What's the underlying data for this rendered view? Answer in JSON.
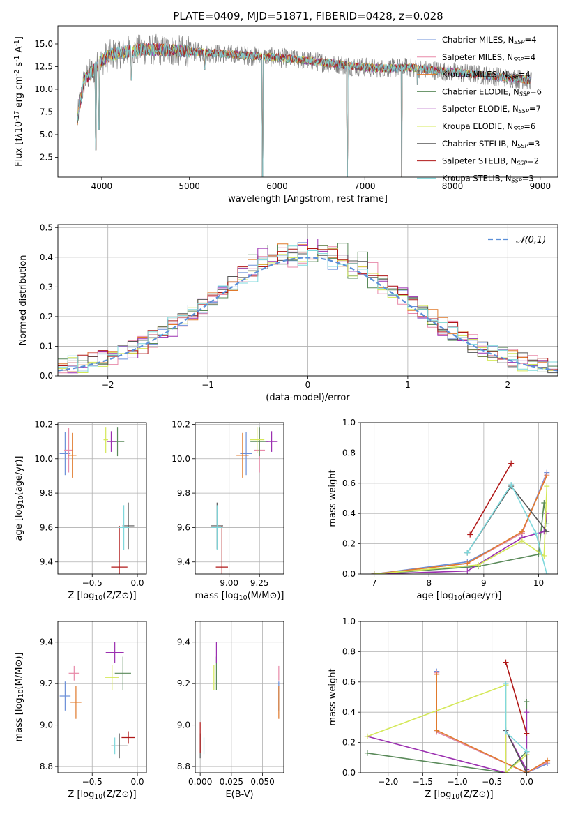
{
  "figure": {
    "title": "PLATE=0409, MJD=51871, FIBERID=0428, z=0.028"
  },
  "models": [
    {
      "name": "Chabrier MILES, N$_{SSP}$=4",
      "label": "Chabrier MILES, N",
      "n": "4",
      "color": "#6b8fd8"
    },
    {
      "name": "Salpeter MILES, N$_{SSP}$=4",
      "label": "Salpeter MILES, N",
      "n": "4",
      "color": "#e88aa9"
    },
    {
      "name": "Kroupa MILES, N$_{SSP}$=4",
      "label": "Kroupa MILES, N",
      "n": "4",
      "color": "#e07a2c"
    },
    {
      "name": "Chabrier ELODIE, N$_{SSP}$=6",
      "label": "Chabrier ELODIE, N",
      "n": "6",
      "color": "#5a8a5a"
    },
    {
      "name": "Salpeter ELODIE, N$_{SSP}$=7",
      "label": "Salpeter ELODIE, N",
      "n": "7",
      "color": "#9b2fb0"
    },
    {
      "name": "Kroupa ELODIE, N$_{SSP}$=6",
      "label": "Kroupa ELODIE, N",
      "n": "6",
      "color": "#d4e858"
    },
    {
      "name": "Chabrier STELIB, N$_{SSP}$=3",
      "label": "Chabrier STELIB, N",
      "n": "3",
      "color": "#555555"
    },
    {
      "name": "Salpeter STELIB, N$_{SSP}$=2",
      "label": "Salpeter STELIB, N",
      "n": "2",
      "color": "#b01818"
    },
    {
      "name": "Kroupa STELIB, N$_{SSP}$=3",
      "label": "Kroupa STELIB, N",
      "n": "3",
      "color": "#7fd8dc"
    }
  ],
  "chart_data": [
    {
      "id": "spectrum",
      "type": "line",
      "xlabel": "wavelength [Angstrom, rest frame]",
      "ylabel": "Flux [f$_\\lambda$10$^{-17}$ erg cm$^{-2}$ s$^{-1}$ A$^{-1}$]",
      "xlim": [
        3500,
        9200
      ],
      "ylim": [
        0.3,
        17.0
      ],
      "xticks": [
        4000,
        5000,
        6000,
        7000,
        8000,
        9000
      ],
      "yticks": [
        2.5,
        5.0,
        7.5,
        10.0,
        12.5,
        15.0
      ],
      "observed_color": "#808080",
      "continuum": {
        "x": [
          3720,
          3800,
          3900,
          4000,
          4100,
          4300,
          4500,
          4800,
          5100,
          5400,
          5700,
          6000,
          6300,
          6600,
          6900,
          7200,
          7500,
          7800,
          8100,
          8400,
          8700,
          8900
        ],
        "y": [
          6.5,
          11.0,
          12.0,
          13.2,
          13.8,
          14.2,
          14.4,
          14.3,
          14.1,
          13.9,
          13.7,
          13.5,
          13.2,
          12.9,
          12.5,
          12.3,
          12.4,
          12.1,
          11.8,
          11.5,
          11.2,
          11.0
        ]
      },
      "absorption_dips": [
        {
          "x": 3933,
          "y": 3.3
        },
        {
          "x": 3968,
          "y": 5.5
        },
        {
          "x": 4340,
          "y": 11.0
        },
        {
          "x": 5175,
          "y": 12.2
        },
        {
          "x": 5835,
          "y": 0.3
        },
        {
          "x": 6800,
          "y": 0.3
        },
        {
          "x": 7420,
          "y": 0.3
        },
        {
          "x": 7600,
          "y": 10.5
        }
      ]
    },
    {
      "id": "residuals",
      "type": "line",
      "xlabel": "(data-model)/error",
      "ylabel": "Normed distribution",
      "xlim": [
        -2.5,
        2.5
      ],
      "ylim": [
        0.0,
        0.51
      ],
      "xticks": [
        -2,
        -1,
        0,
        1,
        2
      ],
      "yticks": [
        0.0,
        0.1,
        0.2,
        0.3,
        0.4,
        0.5
      ],
      "bin_width": 0.1,
      "legend": "$\\mathcal{N}(0,1)$",
      "gaussian_color": "#5b8fd8"
    },
    {
      "id": "age_vs_Z",
      "type": "scatter",
      "xlabel": "Z [log$_{10}$(Z/Z$_\\odot$)]",
      "ylabel": "age  [log$_{10}$(age/yr)]",
      "xlim": [
        -0.88,
        0.1
      ],
      "ylim": [
        9.33,
        10.21
      ],
      "xticks": [
        -0.5,
        0.0
      ],
      "yticks": [
        9.4,
        9.6,
        9.8,
        10.0,
        10.2
      ],
      "points": [
        {
          "m": 0,
          "x": -0.8,
          "y": 10.03,
          "dx": 0.12,
          "dy": 0.25
        },
        {
          "m": 1,
          "x": -0.76,
          "y": 10.05,
          "dx": 0.1,
          "dy": 0.26
        },
        {
          "m": 2,
          "x": -0.72,
          "y": 10.02,
          "dx": 0.09,
          "dy": 0.26
        },
        {
          "m": 3,
          "x": -0.22,
          "y": 10.1,
          "dx": 0.15,
          "dy": 0.17
        },
        {
          "m": 4,
          "x": -0.29,
          "y": 10.1,
          "dx": 0.1,
          "dy": 0.12
        },
        {
          "m": 5,
          "x": -0.35,
          "y": 10.11,
          "dx": 0.05,
          "dy": 0.15
        },
        {
          "m": 6,
          "x": -0.1,
          "y": 9.61,
          "dx": 0.13,
          "dy": 0.27
        },
        {
          "m": 7,
          "x": -0.2,
          "y": 9.37,
          "dx": 0.18,
          "dy": 0.48
        },
        {
          "m": 8,
          "x": -0.15,
          "y": 9.6,
          "dx": 0.12,
          "dy": 0.26
        }
      ]
    },
    {
      "id": "age_vs_mass",
      "type": "scatter",
      "xlabel": "mass [log$_{10}$(M/M$_\\odot$)]",
      "ylabel": "",
      "xlim": [
        8.72,
        9.45
      ],
      "ylim": [
        9.33,
        10.21
      ],
      "xticks": [
        9.0,
        9.25
      ],
      "yticks": [
        9.4,
        9.6,
        9.8,
        10.0,
        10.2
      ],
      "points": [
        {
          "m": 0,
          "x": 9.14,
          "y": 10.03,
          "dx": 0.1,
          "dy": 0.25
        },
        {
          "m": 1,
          "x": 9.25,
          "y": 10.05,
          "dx": 0.09,
          "dy": 0.26
        },
        {
          "m": 2,
          "x": 9.11,
          "y": 10.02,
          "dx": 0.1,
          "dy": 0.26
        },
        {
          "m": 3,
          "x": 9.25,
          "y": 10.1,
          "dx": 0.15,
          "dy": 0.17
        },
        {
          "m": 4,
          "x": 9.35,
          "y": 10.1,
          "dx": 0.1,
          "dy": 0.12
        },
        {
          "m": 5,
          "x": 9.23,
          "y": 10.11,
          "dx": 0.12,
          "dy": 0.15
        },
        {
          "m": 6,
          "x": 8.9,
          "y": 9.61,
          "dx": 0.1,
          "dy": 0.27
        },
        {
          "m": 7,
          "x": 8.94,
          "y": 9.37,
          "dx": 0.1,
          "dy": 0.48
        },
        {
          "m": 8,
          "x": 8.9,
          "y": 9.6,
          "dx": 0.09,
          "dy": 0.26
        }
      ]
    },
    {
      "id": "weight_vs_age",
      "type": "line",
      "xlabel": "age  [log$_{10}$(age/yr)]",
      "ylabel": "mass weight",
      "xlim": [
        6.75,
        10.35
      ],
      "ylim": [
        0.0,
        1.0
      ],
      "xticks": [
        7,
        8,
        9,
        10
      ],
      "yticks": [
        0.0,
        0.2,
        0.4,
        0.6,
        0.8,
        1.0
      ],
      "series": [
        {
          "m": 0,
          "x": [
            7.0,
            8.7,
            9.7,
            10.15
          ],
          "y": [
            0.0,
            0.08,
            0.27,
            0.67
          ]
        },
        {
          "m": 1,
          "x": [
            7.0,
            8.7,
            9.7,
            10.15
          ],
          "y": [
            0.0,
            0.07,
            0.27,
            0.66
          ]
        },
        {
          "m": 2,
          "x": [
            7.0,
            8.7,
            9.7,
            10.15
          ],
          "y": [
            0.0,
            0.07,
            0.28,
            0.65
          ]
        },
        {
          "m": 3,
          "x": [
            7.0,
            8.9,
            10.0,
            10.1,
            10.15
          ],
          "y": [
            0.0,
            0.05,
            0.13,
            0.47,
            0.33
          ]
        },
        {
          "m": 4,
          "x": [
            7.0,
            8.7,
            9.7,
            10.1,
            10.15
          ],
          "y": [
            0.0,
            0.02,
            0.24,
            0.28,
            0.4
          ]
        },
        {
          "m": 5,
          "x": [
            7.0,
            8.9,
            9.7,
            10.1,
            10.15
          ],
          "y": [
            0.0,
            0.06,
            0.22,
            0.12,
            0.58
          ]
        },
        {
          "m": 6,
          "x": [
            8.7,
            9.5,
            10.15
          ],
          "y": [
            0.14,
            0.58,
            0.28
          ]
        },
        {
          "m": 7,
          "x": [
            8.75,
            9.5
          ],
          "y": [
            0.26,
            0.73
          ]
        },
        {
          "m": 8,
          "x": [
            8.7,
            9.5,
            9.95,
            10.15
          ],
          "y": [
            0.14,
            0.59,
            0.27,
            0.0
          ]
        }
      ]
    },
    {
      "id": "mass_vs_Z",
      "type": "scatter",
      "xlabel": "Z [log$_{10}$(Z/Z$_\\odot$)]",
      "ylabel": "mass [log$_{10}$(M/M$_\\odot$)]",
      "xlim": [
        -0.88,
        0.1
      ],
      "ylim": [
        8.77,
        9.5
      ],
      "xticks": [
        -0.5,
        0.0
      ],
      "yticks": [
        8.8,
        9.0,
        9.2,
        9.4
      ],
      "points": [
        {
          "m": 0,
          "x": -0.8,
          "y": 9.14,
          "dx": 0.12,
          "dy": 0.14
        },
        {
          "m": 1,
          "x": -0.7,
          "y": 9.25,
          "dx": 0.12,
          "dy": 0.07
        },
        {
          "m": 2,
          "x": -0.68,
          "y": 9.11,
          "dx": 0.12,
          "dy": 0.16
        },
        {
          "m": 3,
          "x": -0.16,
          "y": 9.25,
          "dx": 0.18,
          "dy": 0.16
        },
        {
          "m": 4,
          "x": -0.25,
          "y": 9.35,
          "dx": 0.2,
          "dy": 0.1
        },
        {
          "m": 5,
          "x": -0.28,
          "y": 9.23,
          "dx": 0.15,
          "dy": 0.12
        },
        {
          "m": 6,
          "x": -0.2,
          "y": 8.9,
          "dx": 0.18,
          "dy": 0.12
        },
        {
          "m": 7,
          "x": -0.1,
          "y": 8.94,
          "dx": 0.15,
          "dy": 0.06
        },
        {
          "m": 8,
          "x": -0.25,
          "y": 8.9,
          "dx": 0.02,
          "dy": 0.08
        }
      ]
    },
    {
      "id": "mass_vs_ebv",
      "type": "scatter",
      "xlabel": "E(B-V)",
      "ylabel": "",
      "xlim": [
        -0.004,
        0.067
      ],
      "ylim": [
        8.77,
        9.5
      ],
      "xticks": [
        0.0,
        0.025,
        0.05
      ],
      "yticks": [
        8.8,
        9.0,
        9.2,
        9.4
      ],
      "points": [
        {
          "m": 0,
          "x": 0.063,
          "y": 9.14,
          "dx": 0.0,
          "dy": 0.14
        },
        {
          "m": 1,
          "x": 0.063,
          "y": 9.25,
          "dx": 0.0,
          "dy": 0.07
        },
        {
          "m": 2,
          "x": 0.063,
          "y": 9.11,
          "dx": 0.0,
          "dy": 0.16
        },
        {
          "m": 3,
          "x": 0.013,
          "y": 9.25,
          "dx": 0.0,
          "dy": 0.16
        },
        {
          "m": 4,
          "x": 0.013,
          "y": 9.35,
          "dx": 0.0,
          "dy": 0.1
        },
        {
          "m": 5,
          "x": 0.011,
          "y": 9.23,
          "dx": 0.0,
          "dy": 0.12
        },
        {
          "m": 6,
          "x": 0.0,
          "y": 8.9,
          "dx": 0.0,
          "dy": 0.12
        },
        {
          "m": 7,
          "x": 0.0,
          "y": 8.94,
          "dx": 0.0,
          "dy": 0.15
        },
        {
          "m": 8,
          "x": 0.003,
          "y": 8.9,
          "dx": 0.0,
          "dy": 0.08
        }
      ]
    },
    {
      "id": "weight_vs_Z",
      "type": "line",
      "xlabel": "Z [log$_{10}$(Z/Z$_\\odot$)]",
      "ylabel": "mass weight",
      "xlim": [
        -2.4,
        0.45
      ],
      "ylim": [
        0.0,
        1.0
      ],
      "xticks": [
        -2.0,
        -1.5,
        -1.0,
        -0.5,
        0.0
      ],
      "yticks": [
        0.0,
        0.2,
        0.4,
        0.6,
        0.8,
        1.0
      ],
      "series": [
        {
          "m": 0,
          "x": [
            -1.3,
            -1.3,
            0.0,
            0.3
          ],
          "y": [
            0.67,
            0.27,
            0.0,
            0.06
          ]
        },
        {
          "m": 1,
          "x": [
            -1.3,
            -1.3,
            0.0,
            0.3
          ],
          "y": [
            0.66,
            0.27,
            0.0,
            0.07
          ]
        },
        {
          "m": 2,
          "x": [
            -1.3,
            -1.3,
            0.0,
            0.3
          ],
          "y": [
            0.65,
            0.28,
            0.0,
            0.08
          ]
        },
        {
          "m": 3,
          "x": [
            -2.3,
            -0.3,
            0.0,
            0.0,
            0.0
          ],
          "y": [
            0.13,
            0.0,
            0.14,
            0.47,
            0.0
          ]
        },
        {
          "m": 4,
          "x": [
            -2.3,
            -0.3,
            -0.3,
            0.0,
            0.0
          ],
          "y": [
            0.24,
            0.0,
            0.28,
            0.02,
            0.4
          ]
        },
        {
          "m": 5,
          "x": [
            -2.3,
            -0.3,
            -0.3,
            0.0
          ],
          "y": [
            0.24,
            0.58,
            0.0,
            0.12
          ]
        },
        {
          "m": 6,
          "x": [
            -0.3,
            0.0,
            0.0
          ],
          "y": [
            0.28,
            0.0,
            0.14
          ]
        },
        {
          "m": 7,
          "x": [
            -0.3,
            0.0
          ],
          "y": [
            0.73,
            0.26
          ]
        },
        {
          "m": 8,
          "x": [
            -0.3,
            -0.3,
            0.0
          ],
          "y": [
            0.59,
            0.27,
            0.14
          ]
        }
      ]
    }
  ]
}
